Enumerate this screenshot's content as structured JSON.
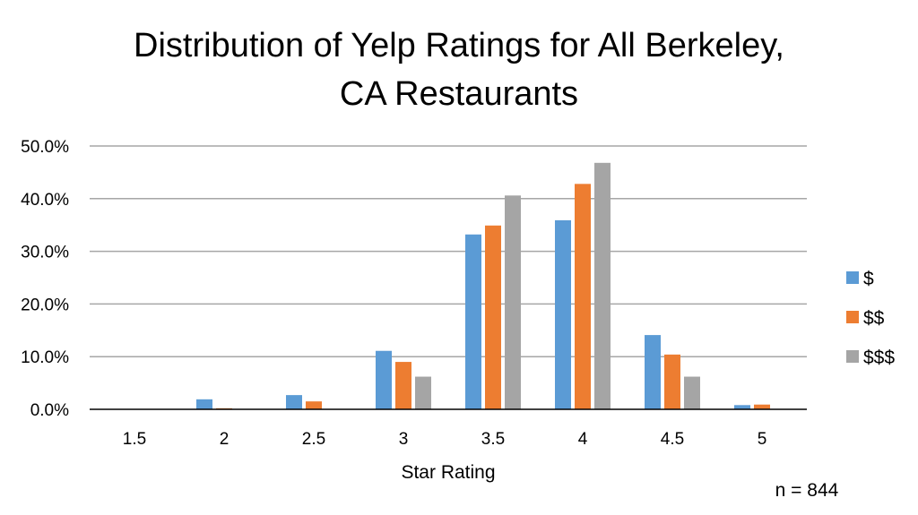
{
  "chart_data": {
    "type": "bar",
    "title_lines": [
      "Distribution of Yelp Ratings for All Berkeley,",
      "CA Restaurants"
    ],
    "xlabel": "Star Rating",
    "ylabel": "",
    "categories": [
      "1.5",
      "2",
      "2.5",
      "3",
      "3.5",
      "4",
      "4.5",
      "5"
    ],
    "series": [
      {
        "name": "$",
        "color": "#5B9BD5",
        "values": [
          0.0,
          1.9,
          2.7,
          11.1,
          33.2,
          35.9,
          14.1,
          0.8
        ]
      },
      {
        "name": "$$",
        "color": "#ED7D31",
        "values": [
          0.0,
          0.2,
          1.5,
          9.0,
          34.9,
          42.8,
          10.4,
          0.9
        ]
      },
      {
        "name": "$$$",
        "color": "#A5A5A5",
        "values": [
          0.0,
          0.0,
          0.0,
          6.2,
          40.6,
          46.8,
          6.2,
          0.0
        ]
      }
    ],
    "ylim": [
      0,
      50
    ],
    "yticks": [
      "0.0%",
      "10.0%",
      "20.0%",
      "30.0%",
      "40.0%",
      "50.0%"
    ],
    "ytick_values": [
      0,
      10,
      20,
      30,
      40,
      50
    ],
    "grid": true,
    "gridline_color": "#A6A6A6",
    "axis_color": "#000000",
    "legend_position": "right",
    "annotation": "n = 844"
  }
}
